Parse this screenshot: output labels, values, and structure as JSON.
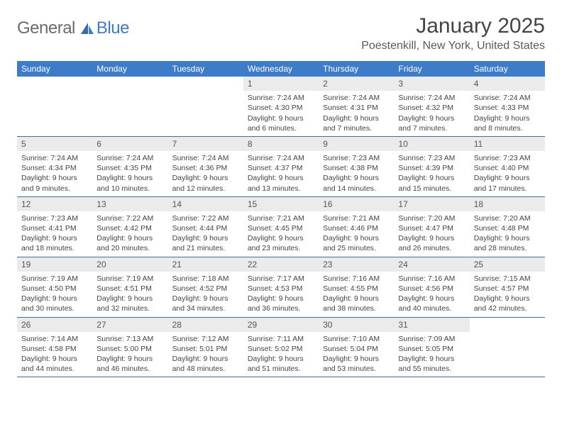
{
  "colors": {
    "header_bg": "#3d7cc9",
    "header_text": "#ffffff",
    "daynum_bg": "#ebebeb",
    "row_border": "#4a6a8a",
    "page_bg": "#ffffff",
    "body_text": "#444444",
    "logo_gray": "#6b6b6b",
    "logo_blue": "#3d7cc9"
  },
  "logo": {
    "part1": "General",
    "part2": "Blue"
  },
  "title": "January 2025",
  "location": "Poestenkill, New York, United States",
  "weekdays": [
    "Sunday",
    "Monday",
    "Tuesday",
    "Wednesday",
    "Thursday",
    "Friday",
    "Saturday"
  ],
  "weeks": [
    [
      null,
      null,
      null,
      {
        "n": "1",
        "sunrise": "7:24 AM",
        "sunset": "4:30 PM",
        "daylight": "9 hours and 6 minutes."
      },
      {
        "n": "2",
        "sunrise": "7:24 AM",
        "sunset": "4:31 PM",
        "daylight": "9 hours and 7 minutes."
      },
      {
        "n": "3",
        "sunrise": "7:24 AM",
        "sunset": "4:32 PM",
        "daylight": "9 hours and 7 minutes."
      },
      {
        "n": "4",
        "sunrise": "7:24 AM",
        "sunset": "4:33 PM",
        "daylight": "9 hours and 8 minutes."
      }
    ],
    [
      {
        "n": "5",
        "sunrise": "7:24 AM",
        "sunset": "4:34 PM",
        "daylight": "9 hours and 9 minutes."
      },
      {
        "n": "6",
        "sunrise": "7:24 AM",
        "sunset": "4:35 PM",
        "daylight": "9 hours and 10 minutes."
      },
      {
        "n": "7",
        "sunrise": "7:24 AM",
        "sunset": "4:36 PM",
        "daylight": "9 hours and 12 minutes."
      },
      {
        "n": "8",
        "sunrise": "7:24 AM",
        "sunset": "4:37 PM",
        "daylight": "9 hours and 13 minutes."
      },
      {
        "n": "9",
        "sunrise": "7:23 AM",
        "sunset": "4:38 PM",
        "daylight": "9 hours and 14 minutes."
      },
      {
        "n": "10",
        "sunrise": "7:23 AM",
        "sunset": "4:39 PM",
        "daylight": "9 hours and 15 minutes."
      },
      {
        "n": "11",
        "sunrise": "7:23 AM",
        "sunset": "4:40 PM",
        "daylight": "9 hours and 17 minutes."
      }
    ],
    [
      {
        "n": "12",
        "sunrise": "7:23 AM",
        "sunset": "4:41 PM",
        "daylight": "9 hours and 18 minutes."
      },
      {
        "n": "13",
        "sunrise": "7:22 AM",
        "sunset": "4:42 PM",
        "daylight": "9 hours and 20 minutes."
      },
      {
        "n": "14",
        "sunrise": "7:22 AM",
        "sunset": "4:44 PM",
        "daylight": "9 hours and 21 minutes."
      },
      {
        "n": "15",
        "sunrise": "7:21 AM",
        "sunset": "4:45 PM",
        "daylight": "9 hours and 23 minutes."
      },
      {
        "n": "16",
        "sunrise": "7:21 AM",
        "sunset": "4:46 PM",
        "daylight": "9 hours and 25 minutes."
      },
      {
        "n": "17",
        "sunrise": "7:20 AM",
        "sunset": "4:47 PM",
        "daylight": "9 hours and 26 minutes."
      },
      {
        "n": "18",
        "sunrise": "7:20 AM",
        "sunset": "4:48 PM",
        "daylight": "9 hours and 28 minutes."
      }
    ],
    [
      {
        "n": "19",
        "sunrise": "7:19 AM",
        "sunset": "4:50 PM",
        "daylight": "9 hours and 30 minutes."
      },
      {
        "n": "20",
        "sunrise": "7:19 AM",
        "sunset": "4:51 PM",
        "daylight": "9 hours and 32 minutes."
      },
      {
        "n": "21",
        "sunrise": "7:18 AM",
        "sunset": "4:52 PM",
        "daylight": "9 hours and 34 minutes."
      },
      {
        "n": "22",
        "sunrise": "7:17 AM",
        "sunset": "4:53 PM",
        "daylight": "9 hours and 36 minutes."
      },
      {
        "n": "23",
        "sunrise": "7:16 AM",
        "sunset": "4:55 PM",
        "daylight": "9 hours and 38 minutes."
      },
      {
        "n": "24",
        "sunrise": "7:16 AM",
        "sunset": "4:56 PM",
        "daylight": "9 hours and 40 minutes."
      },
      {
        "n": "25",
        "sunrise": "7:15 AM",
        "sunset": "4:57 PM",
        "daylight": "9 hours and 42 minutes."
      }
    ],
    [
      {
        "n": "26",
        "sunrise": "7:14 AM",
        "sunset": "4:58 PM",
        "daylight": "9 hours and 44 minutes."
      },
      {
        "n": "27",
        "sunrise": "7:13 AM",
        "sunset": "5:00 PM",
        "daylight": "9 hours and 46 minutes."
      },
      {
        "n": "28",
        "sunrise": "7:12 AM",
        "sunset": "5:01 PM",
        "daylight": "9 hours and 48 minutes."
      },
      {
        "n": "29",
        "sunrise": "7:11 AM",
        "sunset": "5:02 PM",
        "daylight": "9 hours and 51 minutes."
      },
      {
        "n": "30",
        "sunrise": "7:10 AM",
        "sunset": "5:04 PM",
        "daylight": "9 hours and 53 minutes."
      },
      {
        "n": "31",
        "sunrise": "7:09 AM",
        "sunset": "5:05 PM",
        "daylight": "9 hours and 55 minutes."
      },
      null
    ]
  ],
  "labels": {
    "sunrise": "Sunrise:",
    "sunset": "Sunset:",
    "daylight": "Daylight:"
  }
}
